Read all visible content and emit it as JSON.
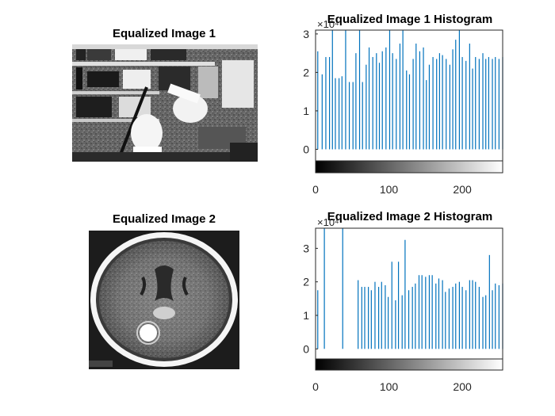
{
  "figure": {
    "titles": {
      "image1": "Equalized Image 1",
      "hist1": "Equalized Image 1 Histogram",
      "image2": "Equalized Image 2",
      "hist2": "Equalized Image 2 Histogram"
    }
  },
  "chart_data": [
    {
      "type": "bar",
      "title": "Equalized Image 1 Histogram",
      "xlabel": "",
      "ylabel": "",
      "xlim": [
        0,
        255
      ],
      "ylim": [
        -0.3,
        3.1
      ],
      "y_exponent_label": "×10⁴",
      "x_ticks": [
        0,
        100,
        200
      ],
      "y_ticks": [
        0,
        1,
        2,
        3
      ],
      "colorbar": "grayscale 0-255 below axis",
      "x": [
        3,
        9,
        14,
        19,
        23,
        27,
        32,
        36,
        41,
        46,
        51,
        55,
        60,
        64,
        69,
        73,
        78,
        83,
        87,
        91,
        96,
        101,
        105,
        110,
        115,
        119,
        124,
        128,
        133,
        137,
        142,
        147,
        151,
        155,
        160,
        165,
        169,
        173,
        178,
        183,
        187,
        191,
        196,
        200,
        205,
        210,
        214,
        218,
        223,
        228,
        232,
        236,
        241,
        245,
        250,
        255
      ],
      "values": [
        2.55,
        1.95,
        2.4,
        2.4,
        3.4,
        1.85,
        1.85,
        1.9,
        3.4,
        1.75,
        1.75,
        2.5,
        3.4,
        1.75,
        2.2,
        2.65,
        2.4,
        2.5,
        2.25,
        2.55,
        2.65,
        3.4,
        2.5,
        2.35,
        2.75,
        3.4,
        2.05,
        1.95,
        2.35,
        2.75,
        2.55,
        2.65,
        1.8,
        2.2,
        2.4,
        2.35,
        2.5,
        2.45,
        2.35,
        2.2,
        2.6,
        2.85,
        3.4,
        2.4,
        2.3,
        2.75,
        2.1,
        2.4,
        2.35,
        2.5,
        2.35,
        2.4,
        2.35,
        2.4,
        2.35,
        2.4
      ],
      "series_color": "#0072BD"
    },
    {
      "type": "bar",
      "title": "Equalized Image 2 Histogram",
      "xlabel": "",
      "ylabel": "",
      "xlim": [
        0,
        255
      ],
      "ylim": [
        -0.3,
        3.6
      ],
      "y_exponent_label": "×10⁴",
      "x_ticks": [
        0,
        100,
        200
      ],
      "y_ticks": [
        0,
        1,
        2,
        3
      ],
      "colorbar": "grayscale 0-255 below axis",
      "x": [
        3,
        12,
        37,
        58,
        63,
        67,
        72,
        76,
        81,
        86,
        90,
        95,
        99,
        104,
        109,
        113,
        118,
        122,
        127,
        132,
        136,
        141,
        145,
        150,
        155,
        159,
        164,
        168,
        173,
        177,
        182,
        187,
        191,
        196,
        200,
        205,
        210,
        214,
        218,
        223,
        228,
        232,
        237,
        241,
        245,
        250,
        255
      ],
      "values": [
        1.75,
        3.7,
        3.7,
        2.05,
        1.85,
        1.85,
        1.85,
        1.75,
        2.0,
        1.85,
        2.0,
        1.9,
        1.55,
        2.6,
        1.45,
        2.6,
        1.6,
        3.25,
        1.75,
        1.85,
        1.95,
        2.2,
        2.2,
        2.15,
        2.2,
        2.2,
        1.95,
        2.1,
        2.05,
        1.7,
        1.8,
        1.85,
        1.95,
        2.0,
        1.85,
        1.75,
        2.05,
        2.05,
        2.0,
        1.85,
        1.55,
        1.6,
        2.8,
        1.75,
        1.95,
        1.9,
        1.95
      ],
      "series_color": "#0072BD"
    }
  ]
}
